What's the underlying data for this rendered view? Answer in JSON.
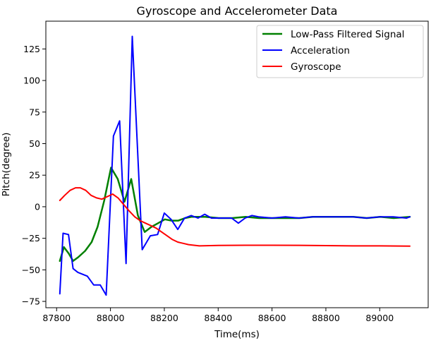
{
  "chart_data": {
    "type": "line",
    "title": "Gyroscope and Accelerometer Data",
    "xlabel": "Time(ms)",
    "ylabel": "Pitch(degree)",
    "xlim": [
      87760,
      89180
    ],
    "ylim": [
      -80,
      147
    ],
    "xticks": [
      87800,
      88000,
      88200,
      88400,
      88600,
      88800,
      89000
    ],
    "yticks": [
      -75,
      -50,
      -25,
      0,
      25,
      50,
      75,
      100,
      125
    ],
    "grid": false,
    "legend_position": "top-right",
    "series": [
      {
        "name": "Low-Pass Filtered Signal",
        "color": "#008000",
        "width": 2.5,
        "points": [
          [
            87812,
            -43
          ],
          [
            87827,
            -32
          ],
          [
            87845,
            -37
          ],
          [
            87861,
            -43
          ],
          [
            87880,
            -40
          ],
          [
            87906,
            -35
          ],
          [
            87930,
            -28
          ],
          [
            87952,
            -16
          ],
          [
            87977,
            5
          ],
          [
            88002,
            31
          ],
          [
            88027,
            22
          ],
          [
            88052,
            4
          ],
          [
            88077,
            22
          ],
          [
            88102,
            -7
          ],
          [
            88127,
            -20
          ],
          [
            88152,
            -16
          ],
          [
            88177,
            -13
          ],
          [
            88202,
            -10
          ],
          [
            88227,
            -11
          ],
          [
            88252,
            -11
          ],
          [
            88277,
            -9
          ],
          [
            88302,
            -8
          ],
          [
            88327,
            -8
          ],
          [
            88352,
            -8
          ],
          [
            88402,
            -9
          ],
          [
            88452,
            -9
          ],
          [
            88502,
            -8
          ],
          [
            88552,
            -9
          ],
          [
            88602,
            -9
          ],
          [
            88652,
            -9
          ],
          [
            88702,
            -9
          ],
          [
            88752,
            -8
          ],
          [
            88802,
            -8
          ],
          [
            88852,
            -8
          ],
          [
            88902,
            -8
          ],
          [
            88952,
            -9
          ],
          [
            89002,
            -8
          ],
          [
            89052,
            -9
          ],
          [
            89112,
            -8
          ]
        ]
      },
      {
        "name": "Acceleration",
        "color": "#0000ff",
        "width": 2,
        "points": [
          [
            87812,
            -69
          ],
          [
            87824,
            -21
          ],
          [
            87844,
            -22
          ],
          [
            87861,
            -49
          ],
          [
            87879,
            -52
          ],
          [
            87914,
            -55
          ],
          [
            87938,
            -62
          ],
          [
            87962,
            -62
          ],
          [
            87984,
            -70
          ],
          [
            88011,
            56
          ],
          [
            88034,
            68
          ],
          [
            88058,
            -45
          ],
          [
            88081,
            135
          ],
          [
            88118,
            -34
          ],
          [
            88148,
            -23
          ],
          [
            88175,
            -22
          ],
          [
            88200,
            -5
          ],
          [
            88225,
            -10
          ],
          [
            88250,
            -18
          ],
          [
            88275,
            -9
          ],
          [
            88300,
            -7
          ],
          [
            88325,
            -9
          ],
          [
            88350,
            -6
          ],
          [
            88375,
            -9
          ],
          [
            88400,
            -9
          ],
          [
            88425,
            -9
          ],
          [
            88450,
            -9
          ],
          [
            88475,
            -13
          ],
          [
            88500,
            -9
          ],
          [
            88525,
            -7
          ],
          [
            88550,
            -8
          ],
          [
            88600,
            -9
          ],
          [
            88650,
            -8
          ],
          [
            88700,
            -9
          ],
          [
            88750,
            -8
          ],
          [
            88800,
            -8
          ],
          [
            88850,
            -8
          ],
          [
            88900,
            -8
          ],
          [
            88950,
            -9
          ],
          [
            89000,
            -8
          ],
          [
            89050,
            -8
          ],
          [
            89100,
            -9
          ],
          [
            89112,
            -8
          ]
        ]
      },
      {
        "name": "Gyroscope",
        "color": "#ff0000",
        "width": 2,
        "points": [
          [
            87812,
            5
          ],
          [
            87830,
            9
          ],
          [
            87850,
            13
          ],
          [
            87870,
            15
          ],
          [
            87888,
            15
          ],
          [
            87908,
            13
          ],
          [
            87928,
            9
          ],
          [
            87948,
            7
          ],
          [
            87968,
            6
          ],
          [
            87988,
            8
          ],
          [
            88008,
            10
          ],
          [
            88028,
            7
          ],
          [
            88048,
            2
          ],
          [
            88068,
            -3
          ],
          [
            88090,
            -8
          ],
          [
            88110,
            -11
          ],
          [
            88130,
            -13
          ],
          [
            88150,
            -15
          ],
          [
            88170,
            -17
          ],
          [
            88190,
            -20
          ],
          [
            88210,
            -23
          ],
          [
            88230,
            -26
          ],
          [
            88250,
            -28
          ],
          [
            88270,
            -29
          ],
          [
            88290,
            -30
          ],
          [
            88310,
            -30.5
          ],
          [
            88330,
            -31
          ],
          [
            88400,
            -30.7
          ],
          [
            88500,
            -30.5
          ],
          [
            88600,
            -30.5
          ],
          [
            88700,
            -30.6
          ],
          [
            88800,
            -30.8
          ],
          [
            88900,
            -31
          ],
          [
            89000,
            -31
          ],
          [
            89112,
            -31.2
          ]
        ]
      }
    ]
  }
}
